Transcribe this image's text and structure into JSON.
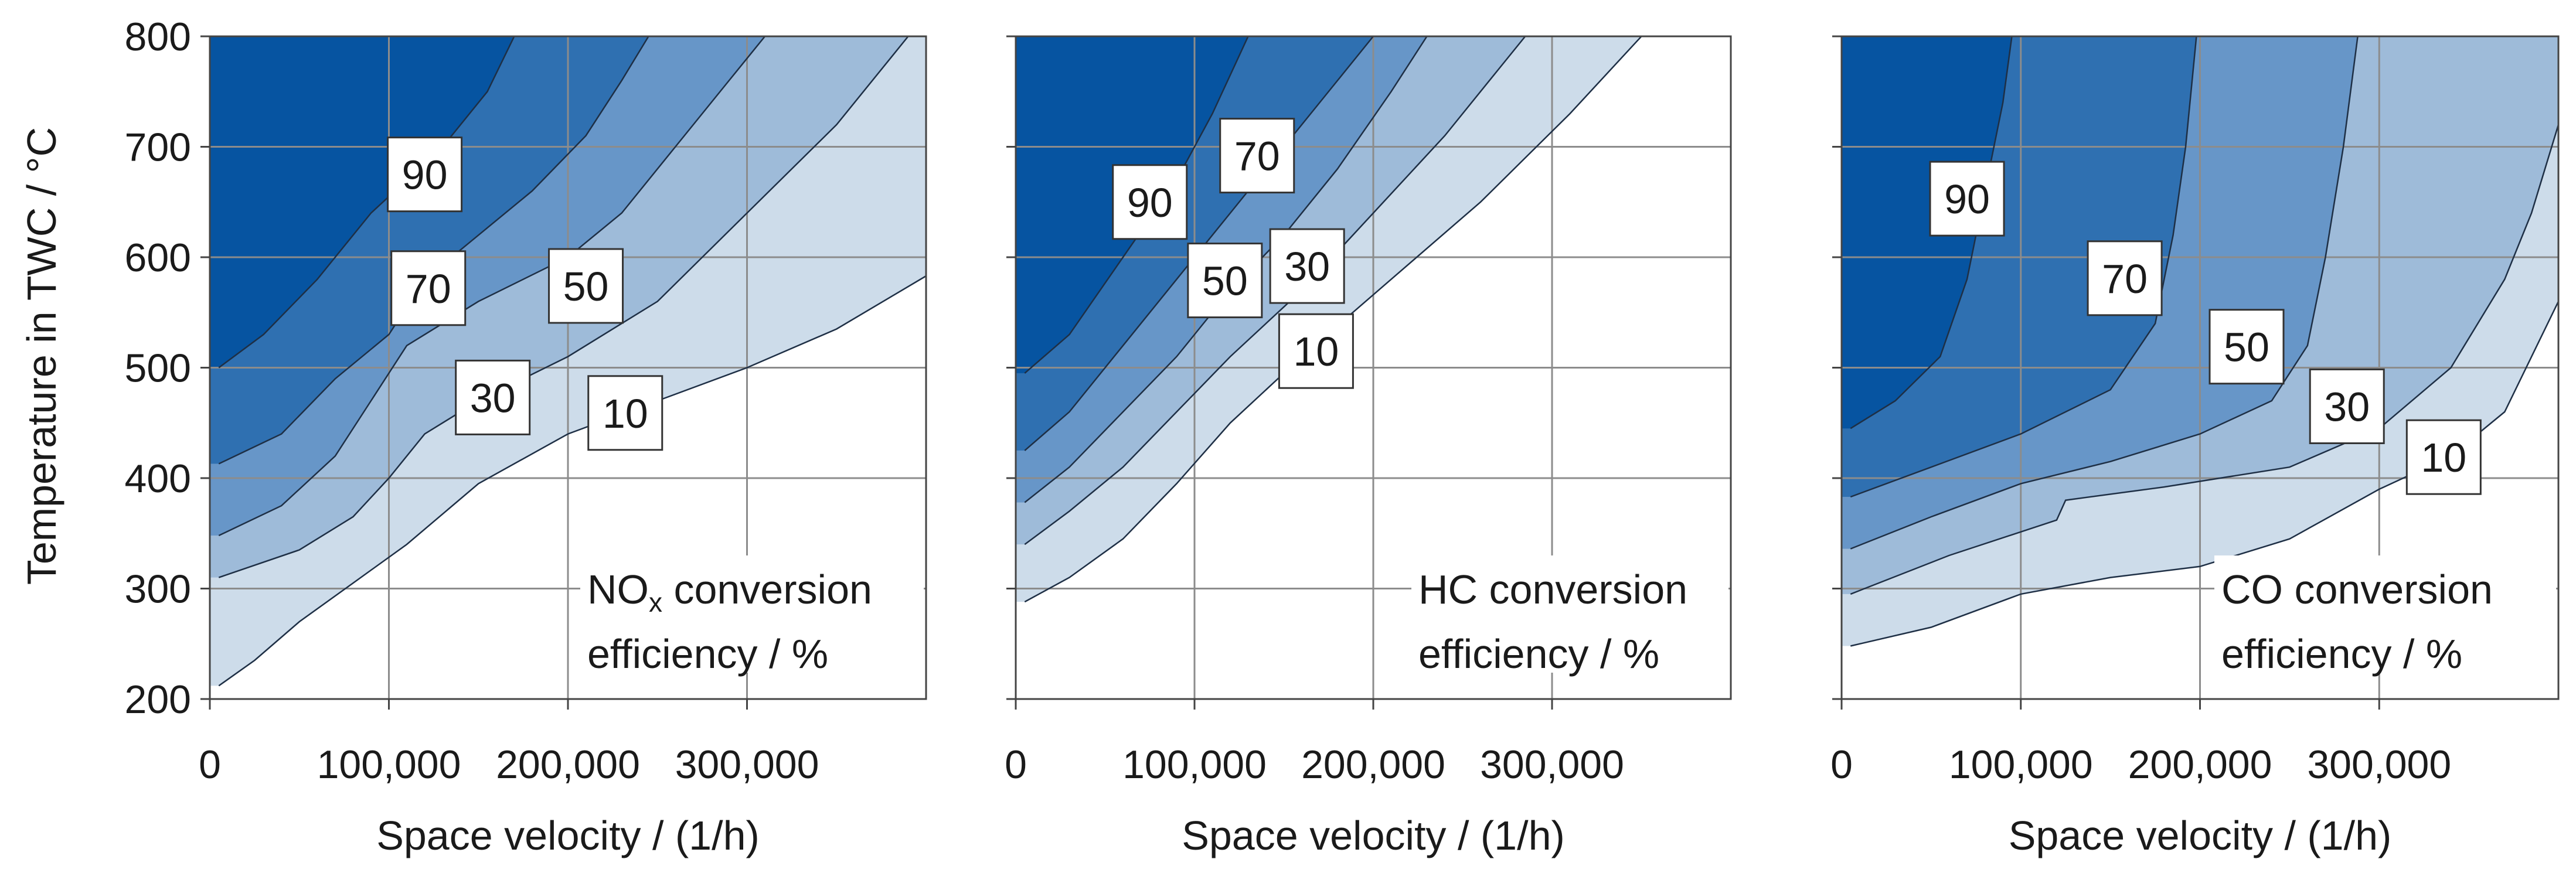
{
  "chart_data": [
    {
      "type": "contour",
      "panel": "NOx",
      "title_line1": "NO",
      "title_sub": "x",
      "title_rest": " conversion",
      "title_line2": "efficiency / %",
      "xlabel": "Space velocity / (1/h)",
      "ylabel": "Temperature in TWC / °C",
      "xlim": [
        0,
        400000
      ],
      "ylim": [
        200,
        800
      ],
      "xticks": [
        0,
        100000,
        200000,
        300000
      ],
      "xtick_labels": [
        "0",
        "100,000",
        "200,000",
        "300,000"
      ],
      "yticks": [
        200,
        300,
        400,
        500,
        600,
        700,
        800
      ],
      "ytick_labels": [
        "200",
        "300",
        "400",
        "500",
        "600",
        "700",
        "800"
      ],
      "levels": [
        10,
        30,
        50,
        70,
        90
      ],
      "colors": [
        "#cddcea",
        "#9ebbd9",
        "#6796c8",
        "#2f70b1",
        "#0654a1"
      ],
      "contours": [
        {
          "level": 10,
          "points": [
            [
              5000,
              212
            ],
            [
              25000,
              235
            ],
            [
              50000,
              270
            ],
            [
              80000,
              305
            ],
            [
              110000,
              340
            ],
            [
              150000,
              395
            ],
            [
              200000,
              440
            ],
            [
              250000,
              470
            ],
            [
              300000,
              500
            ],
            [
              350000,
              535
            ],
            [
              400000,
              583
            ]
          ]
        },
        {
          "level": 30,
          "points": [
            [
              5000,
              310
            ],
            [
              50000,
              335
            ],
            [
              80000,
              365
            ],
            [
              100000,
              400
            ],
            [
              120000,
              440
            ],
            [
              150000,
              470
            ],
            [
              200000,
              510
            ],
            [
              250000,
              560
            ],
            [
              300000,
              640
            ],
            [
              350000,
              720
            ],
            [
              390000,
              800
            ]
          ]
        },
        {
          "level": 50,
          "points": [
            [
              5000,
              348
            ],
            [
              40000,
              375
            ],
            [
              70000,
              420
            ],
            [
              90000,
              470
            ],
            [
              110000,
              520
            ],
            [
              150000,
              560
            ],
            [
              200000,
              600
            ],
            [
              230000,
              640
            ],
            [
              260000,
              700
            ],
            [
              290000,
              760
            ],
            [
              310000,
              800
            ]
          ]
        },
        {
          "level": 70,
          "points": [
            [
              5000,
              413
            ],
            [
              40000,
              440
            ],
            [
              70000,
              490
            ],
            [
              100000,
              530
            ],
            [
              120000,
              580
            ],
            [
              150000,
              620
            ],
            [
              180000,
              660
            ],
            [
              210000,
              710
            ],
            [
              230000,
              760
            ],
            [
              245000,
              800
            ]
          ]
        },
        {
          "level": 90,
          "points": [
            [
              5000,
              500
            ],
            [
              30000,
              530
            ],
            [
              60000,
              580
            ],
            [
              90000,
              640
            ],
            [
              130000,
              700
            ],
            [
              155000,
              750
            ],
            [
              170000,
              800
            ]
          ]
        }
      ],
      "labels": [
        {
          "text": "90",
          "x": 120000,
          "y": 675
        },
        {
          "text": "70",
          "x": 122000,
          "y": 572
        },
        {
          "text": "50",
          "x": 210000,
          "y": 574
        },
        {
          "text": "30",
          "x": 158000,
          "y": 473
        },
        {
          "text": "10",
          "x": 232000,
          "y": 459
        }
      ]
    },
    {
      "type": "contour",
      "panel": "HC",
      "title_line1": "HC conversion",
      "title_line2": "efficiency / %",
      "xlabel": "Space velocity / (1/h)",
      "xlim": [
        0,
        400000
      ],
      "ylim": [
        200,
        800
      ],
      "xticks": [
        0,
        100000,
        200000,
        300000
      ],
      "xtick_labels": [
        "0",
        "100,000",
        "200,000",
        "300,000"
      ],
      "yticks": [
        200,
        300,
        400,
        500,
        600,
        700,
        800
      ],
      "levels": [
        10,
        30,
        50,
        70,
        90
      ],
      "colors": [
        "#cddcea",
        "#9ebbd9",
        "#6796c8",
        "#2f70b1",
        "#0654a1"
      ],
      "contours": [
        {
          "level": 10,
          "points": [
            [
              5000,
              288
            ],
            [
              30000,
              310
            ],
            [
              60000,
              345
            ],
            [
              90000,
              395
            ],
            [
              120000,
              450
            ],
            [
              160000,
              510
            ],
            [
              210000,
              580
            ],
            [
              260000,
              650
            ],
            [
              310000,
              730
            ],
            [
              350000,
              800
            ]
          ]
        },
        {
          "level": 30,
          "points": [
            [
              5000,
              340
            ],
            [
              30000,
              370
            ],
            [
              60000,
              410
            ],
            [
              90000,
              460
            ],
            [
              120000,
              510
            ],
            [
              160000,
              570
            ],
            [
              200000,
              640
            ],
            [
              240000,
              710
            ],
            [
              270000,
              770
            ],
            [
              285000,
              800
            ]
          ]
        },
        {
          "level": 50,
          "points": [
            [
              5000,
              378
            ],
            [
              30000,
              410
            ],
            [
              60000,
              460
            ],
            [
              90000,
              510
            ],
            [
              120000,
              570
            ],
            [
              150000,
              620
            ],
            [
              180000,
              680
            ],
            [
              210000,
              750
            ],
            [
              230000,
              800
            ]
          ]
        },
        {
          "level": 70,
          "points": [
            [
              5000,
              425
            ],
            [
              30000,
              460
            ],
            [
              60000,
              520
            ],
            [
              90000,
              580
            ],
            [
              120000,
              640
            ],
            [
              150000,
              700
            ],
            [
              180000,
              760
            ],
            [
              200000,
              800
            ]
          ]
        },
        {
          "level": 90,
          "points": [
            [
              5000,
              495
            ],
            [
              30000,
              530
            ],
            [
              60000,
              600
            ],
            [
              90000,
              670
            ],
            [
              110000,
              730
            ],
            [
              130000,
              800
            ]
          ]
        }
      ],
      "labels": [
        {
          "text": "90",
          "x": 75000,
          "y": 650
        },
        {
          "text": "70",
          "x": 135000,
          "y": 692
        },
        {
          "text": "50",
          "x": 117000,
          "y": 579
        },
        {
          "text": "30",
          "x": 163000,
          "y": 592
        },
        {
          "text": "10",
          "x": 168000,
          "y": 515
        }
      ]
    },
    {
      "type": "contour",
      "panel": "CO",
      "title_line1": "CO conversion",
      "title_line2": "efficiency / %",
      "xlabel": "Space velocity / (1/h)",
      "xlim": [
        0,
        400000
      ],
      "ylim": [
        200,
        800
      ],
      "xticks": [
        0,
        100000,
        200000,
        300000
      ],
      "xtick_labels": [
        "0",
        "100,000",
        "200,000",
        "300,000"
      ],
      "yticks": [
        200,
        300,
        400,
        500,
        600,
        700,
        800
      ],
      "levels": [
        10,
        30,
        50,
        70,
        90
      ],
      "colors": [
        "#cddcea",
        "#9ebbd9",
        "#6796c8",
        "#2f70b1",
        "#0654a1"
      ],
      "contours": [
        {
          "level": 10,
          "points": [
            [
              5000,
              248
            ],
            [
              50000,
              265
            ],
            [
              100000,
              295
            ],
            [
              150000,
              310
            ],
            [
              200000,
              320
            ],
            [
              250000,
              345
            ],
            [
              300000,
              390
            ],
            [
              340000,
              420
            ],
            [
              370000,
              460
            ],
            [
              400000,
              560
            ]
          ]
        },
        {
          "level": 30,
          "points": [
            [
              5000,
              295
            ],
            [
              60000,
              330
            ],
            [
              120000,
              362
            ],
            [
              125000,
              380
            ],
            [
              180000,
              392
            ],
            [
              250000,
              410
            ],
            [
              300000,
              445
            ],
            [
              340000,
              500
            ],
            [
              370000,
              580
            ],
            [
              385000,
              640
            ],
            [
              400000,
              720
            ]
          ]
        },
        {
          "level": 50,
          "points": [
            [
              5000,
              336
            ],
            [
              50000,
              365
            ],
            [
              100000,
              395
            ],
            [
              150000,
              415
            ],
            [
              200000,
              440
            ],
            [
              240000,
              470
            ],
            [
              260000,
              520
            ],
            [
              270000,
              600
            ],
            [
              280000,
              700
            ],
            [
              288000,
              800
            ]
          ]
        },
        {
          "level": 70,
          "points": [
            [
              5000,
              383
            ],
            [
              50000,
              410
            ],
            [
              100000,
              440
            ],
            [
              150000,
              480
            ],
            [
              175000,
              540
            ],
            [
              185000,
              620
            ],
            [
              192000,
              700
            ],
            [
              198000,
              800
            ]
          ]
        },
        {
          "level": 90,
          "points": [
            [
              5000,
              445
            ],
            [
              30000,
              470
            ],
            [
              55000,
              510
            ],
            [
              70000,
              580
            ],
            [
              80000,
              660
            ],
            [
              90000,
              740
            ],
            [
              95000,
              800
            ]
          ]
        }
      ],
      "labels": [
        {
          "text": "90",
          "x": 70000,
          "y": 653
        },
        {
          "text": "70",
          "x": 158000,
          "y": 581
        },
        {
          "text": "50",
          "x": 226000,
          "y": 519
        },
        {
          "text": "30",
          "x": 282000,
          "y": 465
        },
        {
          "text": "10",
          "x": 336000,
          "y": 419
        }
      ]
    }
  ]
}
